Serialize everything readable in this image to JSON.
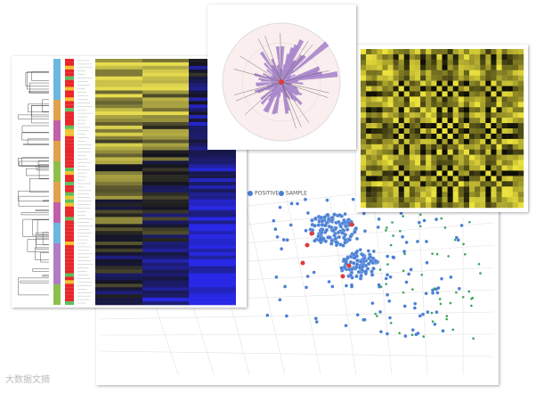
{
  "legend": {
    "items": [
      "POSITIVE",
      "SAMPLE"
    ]
  },
  "watermark": "大数据文摘"
}
